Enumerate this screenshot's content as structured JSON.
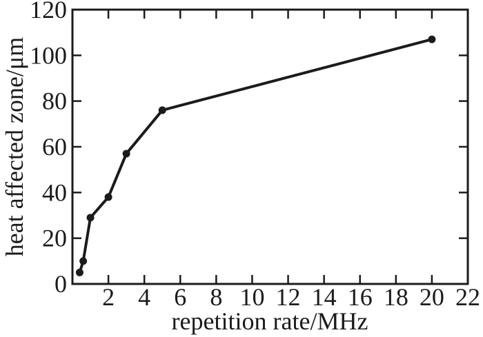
{
  "figure": {
    "background_color": "#ffffff",
    "ink_color": "#1b1b1b"
  },
  "chart_data": {
    "type": "line",
    "title": "",
    "xlabel": "repetition rate/MHz",
    "ylabel": "heat affected zone/μm",
    "series": [
      {
        "name": "heat affected zone",
        "x": [
          0.4,
          0.6,
          1,
          2,
          3,
          5,
          20
        ],
        "y": [
          5,
          10,
          29,
          38,
          57,
          76,
          107
        ]
      }
    ],
    "xlim": [
      0,
      22
    ],
    "ylim": [
      0,
      120
    ],
    "xticks": [
      2,
      4,
      6,
      8,
      10,
      12,
      14,
      16,
      18,
      20,
      22
    ],
    "yticks": [
      0,
      20,
      40,
      60,
      80,
      100,
      120
    ],
    "grid": false,
    "legend": "none",
    "line_color": "#1b1b1b",
    "marker": "filled-circle",
    "marker_color": "#1b1b1b",
    "tick_direction": "in",
    "frame": "full-box"
  }
}
